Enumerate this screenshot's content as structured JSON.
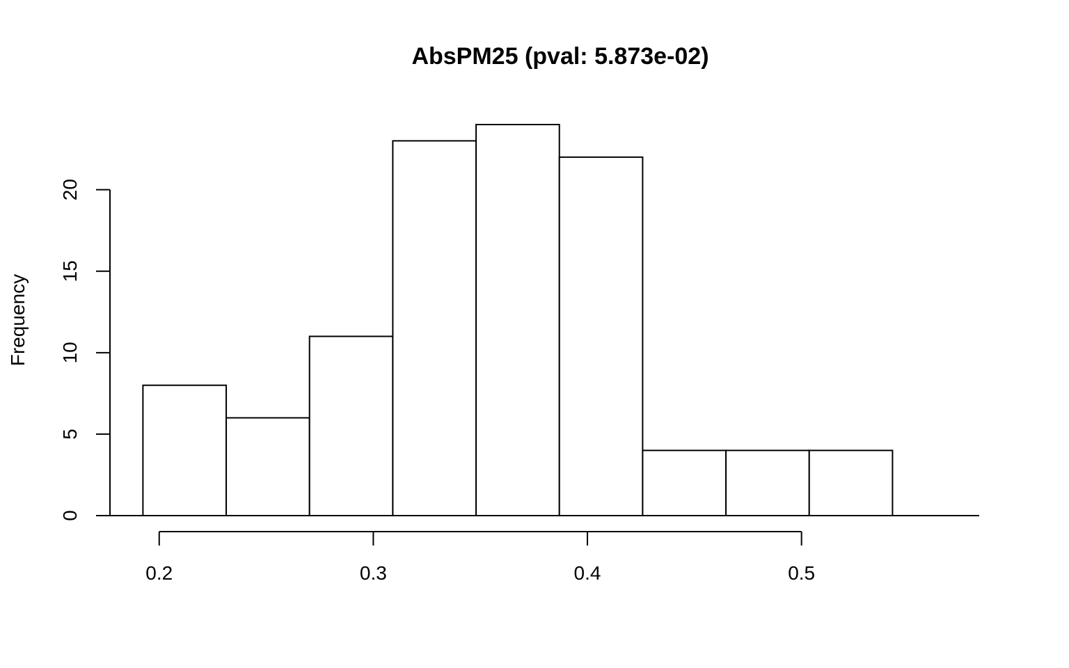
{
  "chart_data": {
    "type": "bar",
    "title": "AbsPM25 (pval: 5.873e-02)",
    "xlabel": "",
    "ylabel": "Frequency",
    "bins": [
      {
        "x0": 0.1924,
        "x1": 0.2313,
        "count": 8
      },
      {
        "x0": 0.2313,
        "x1": 0.2702,
        "count": 6
      },
      {
        "x0": 0.2702,
        "x1": 0.3091,
        "count": 11
      },
      {
        "x0": 0.3091,
        "x1": 0.348,
        "count": 23
      },
      {
        "x0": 0.348,
        "x1": 0.3869,
        "count": 24
      },
      {
        "x0": 0.3869,
        "x1": 0.4258,
        "count": 22
      },
      {
        "x0": 0.4258,
        "x1": 0.4647,
        "count": 4
      },
      {
        "x0": 0.4647,
        "x1": 0.5036,
        "count": 4
      },
      {
        "x0": 0.5036,
        "x1": 0.5425,
        "count": 4
      }
    ],
    "x_ticks": [
      0.2,
      0.3,
      0.4,
      0.5
    ],
    "x_tick_labels": [
      "0.2",
      "0.3",
      "0.4",
      "0.5"
    ],
    "y_ticks": [
      0,
      5,
      10,
      15,
      20
    ],
    "y_tick_labels": [
      "0",
      "5",
      "10",
      "15",
      "20"
    ],
    "xlim": [
      0.177,
      0.583
    ],
    "ylim": [
      0,
      24
    ],
    "grid": false,
    "legend": "none",
    "colors": {
      "bar_fill": "#ffffff",
      "bar_stroke": "#000000",
      "axis": "#000000"
    }
  }
}
